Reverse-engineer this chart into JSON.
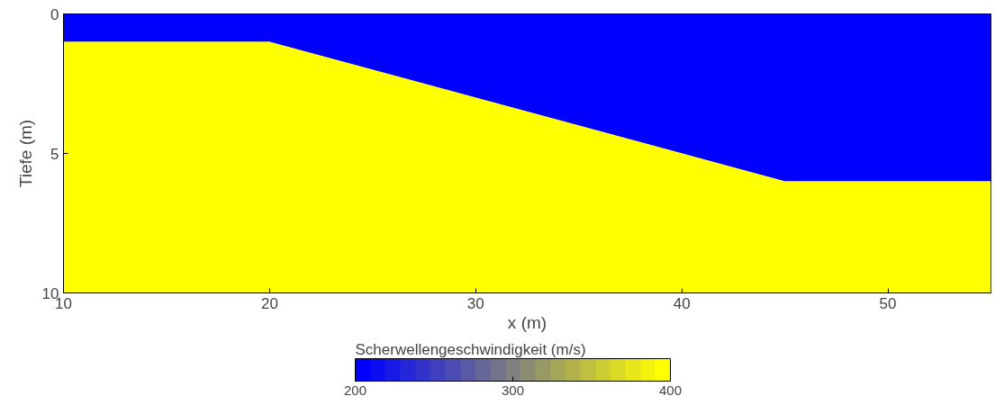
{
  "chart_data": {
    "type": "area",
    "stacked": true,
    "xlabel": "x (m)",
    "ylabel": "Tiefe (m)",
    "clabel": "Scherwellengeschwindigkeit (m/s)",
    "x": [
      10,
      20,
      45,
      55
    ],
    "series": [
      {
        "color": "#0000ff",
        "values": [
          1,
          1,
          6,
          6
        ]
      },
      {
        "color": "#ffff00",
        "values": [
          9,
          9,
          4,
          4
        ]
      }
    ],
    "xlim": [
      10,
      55
    ],
    "xticks": [
      10,
      20,
      30,
      40,
      50
    ],
    "ylim": [
      10,
      0
    ],
    "yticks": [
      0,
      5,
      10
    ],
    "clim": [
      200,
      400
    ],
    "cticks": [
      200,
      300,
      400
    ]
  }
}
